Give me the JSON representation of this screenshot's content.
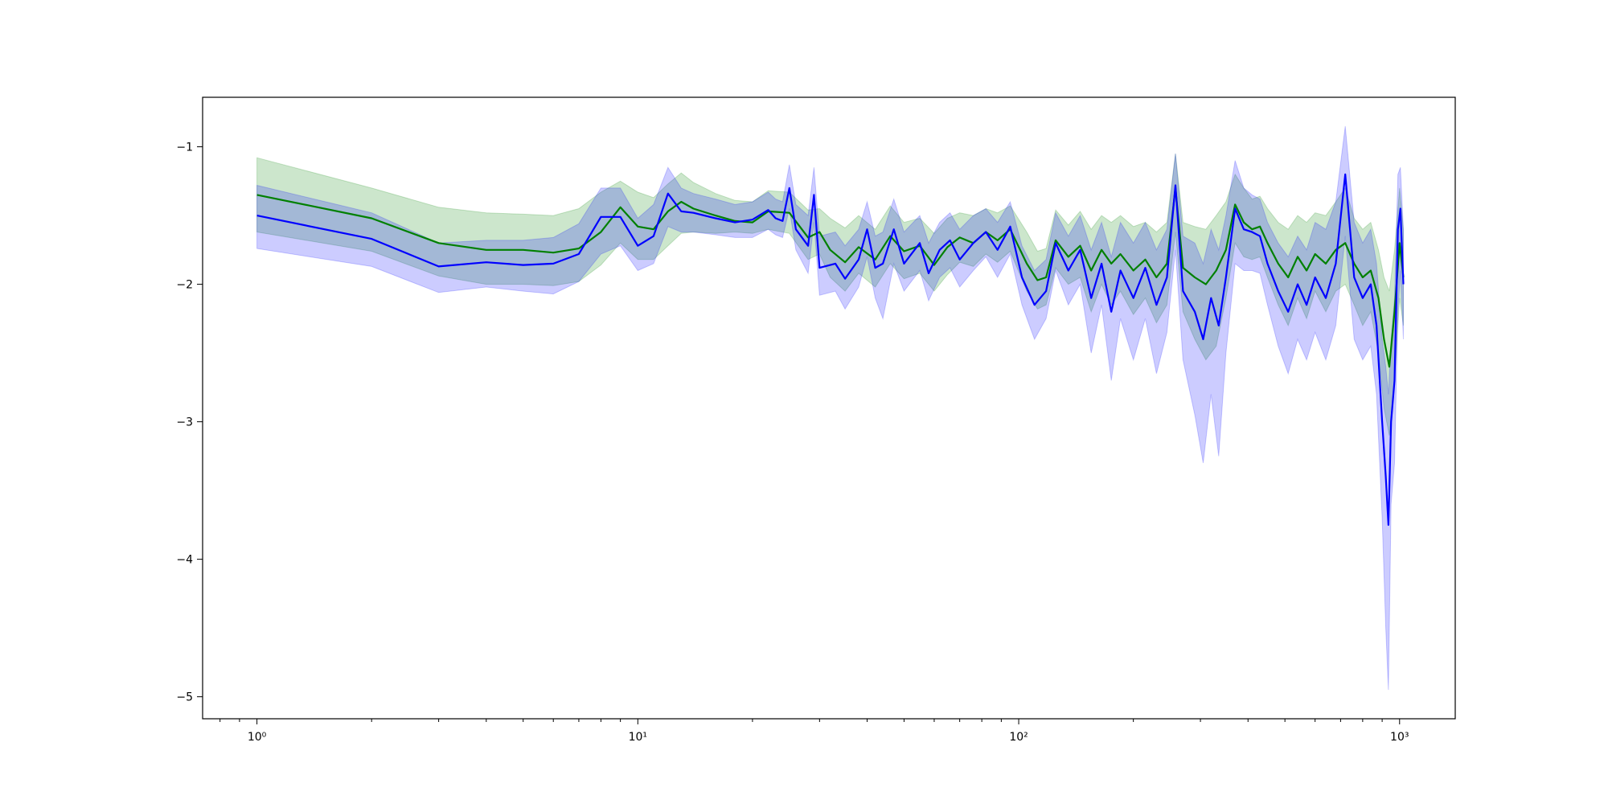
{
  "chart_data": {
    "type": "line",
    "title": "",
    "xlabel": "",
    "ylabel": "",
    "xscale": "log",
    "xlim": [
      0.72,
      1400
    ],
    "ylim": [
      -5.16,
      -0.64
    ],
    "grid": false,
    "legend": "none",
    "x_ticks": [
      {
        "value": 1,
        "label": "10⁰"
      },
      {
        "value": 10,
        "label": "10¹"
      },
      {
        "value": 100,
        "label": "10²"
      },
      {
        "value": 1000,
        "label": "10³"
      }
    ],
    "y_ticks": [
      {
        "value": -1,
        "label": "−1"
      },
      {
        "value": -2,
        "label": "−2"
      },
      {
        "value": -3,
        "label": "−3"
      },
      {
        "value": -4,
        "label": "−4"
      },
      {
        "value": -5,
        "label": "−5"
      }
    ],
    "series": [
      {
        "color": "#008000",
        "band_color": "#008000",
        "band_opacity": 0.2,
        "points": [
          [
            1,
            -1.35,
            -1.62,
            -1.08
          ],
          [
            2,
            -1.52,
            -1.76,
            -1.3
          ],
          [
            3,
            -1.7,
            -1.94,
            -1.44
          ],
          [
            4,
            -1.75,
            -2.0,
            -1.48
          ],
          [
            5,
            -1.75,
            -2.0,
            -1.49
          ],
          [
            6,
            -1.77,
            -2.01,
            -1.5
          ],
          [
            7,
            -1.74,
            -1.98,
            -1.45
          ],
          [
            8,
            -1.62,
            -1.86,
            -1.33
          ],
          [
            9,
            -1.44,
            -1.7,
            -1.25
          ],
          [
            10,
            -1.58,
            -1.82,
            -1.33
          ],
          [
            11,
            -1.6,
            -1.82,
            -1.37
          ],
          [
            12,
            -1.47,
            -1.72,
            -1.27
          ],
          [
            13,
            -1.4,
            -1.63,
            -1.19
          ],
          [
            14,
            -1.45,
            -1.62,
            -1.26
          ],
          [
            16,
            -1.5,
            -1.63,
            -1.34
          ],
          [
            18,
            -1.54,
            -1.62,
            -1.39
          ],
          [
            20,
            -1.55,
            -1.63,
            -1.4
          ],
          [
            22,
            -1.47,
            -1.6,
            -1.32
          ],
          [
            25,
            -1.48,
            -1.63,
            -1.33
          ],
          [
            28,
            -1.66,
            -1.82,
            -1.46
          ],
          [
            30,
            -1.62,
            -1.78,
            -1.45
          ],
          [
            32,
            -1.75,
            -1.95,
            -1.52
          ],
          [
            35,
            -1.84,
            -2.05,
            -1.59
          ],
          [
            38,
            -1.73,
            -1.92,
            -1.5
          ],
          [
            42,
            -1.82,
            -2.02,
            -1.6
          ],
          [
            46,
            -1.65,
            -1.85,
            -1.43
          ],
          [
            50,
            -1.76,
            -1.96,
            -1.55
          ],
          [
            55,
            -1.72,
            -1.92,
            -1.52
          ],
          [
            60,
            -1.86,
            -2.05,
            -1.63
          ],
          [
            65,
            -1.73,
            -1.93,
            -1.52
          ],
          [
            70,
            -1.66,
            -1.84,
            -1.48
          ],
          [
            76,
            -1.7,
            -1.87,
            -1.5
          ],
          [
            82,
            -1.62,
            -1.78,
            -1.45
          ],
          [
            88,
            -1.68,
            -1.84,
            -1.48
          ],
          [
            95,
            -1.6,
            -1.76,
            -1.43
          ],
          [
            105,
            -1.85,
            -2.05,
            -1.62
          ],
          [
            112,
            -1.97,
            -2.18,
            -1.76
          ],
          [
            118,
            -1.95,
            -2.15,
            -1.74
          ],
          [
            125,
            -1.68,
            -1.88,
            -1.46
          ],
          [
            135,
            -1.8,
            -2.0,
            -1.57
          ],
          [
            145,
            -1.72,
            -1.95,
            -1.47
          ],
          [
            155,
            -1.9,
            -2.2,
            -1.6
          ],
          [
            165,
            -1.75,
            -2.0,
            -1.5
          ],
          [
            175,
            -1.85,
            -2.15,
            -1.55
          ],
          [
            185,
            -1.78,
            -2.05,
            -1.5
          ],
          [
            200,
            -1.9,
            -2.22,
            -1.58
          ],
          [
            215,
            -1.82,
            -2.1,
            -1.55
          ],
          [
            230,
            -1.95,
            -2.28,
            -1.62
          ],
          [
            245,
            -1.85,
            -2.15,
            -1.55
          ],
          [
            258,
            -1.3,
            -1.62,
            -1.05
          ],
          [
            270,
            -1.88,
            -2.2,
            -1.55
          ],
          [
            290,
            -1.95,
            -2.4,
            -1.58
          ],
          [
            310,
            -2.0,
            -2.55,
            -1.6
          ],
          [
            330,
            -1.9,
            -2.45,
            -1.5
          ],
          [
            350,
            -1.75,
            -2.1,
            -1.4
          ],
          [
            370,
            -1.42,
            -1.7,
            -1.2
          ],
          [
            390,
            -1.55,
            -1.8,
            -1.3
          ],
          [
            410,
            -1.6,
            -1.82,
            -1.38
          ],
          [
            430,
            -1.58,
            -1.8,
            -1.36
          ],
          [
            450,
            -1.7,
            -1.95,
            -1.45
          ],
          [
            480,
            -1.85,
            -2.15,
            -1.55
          ],
          [
            510,
            -1.95,
            -2.3,
            -1.6
          ],
          [
            540,
            -1.8,
            -2.1,
            -1.5
          ],
          [
            570,
            -1.9,
            -2.25,
            -1.55
          ],
          [
            600,
            -1.78,
            -2.05,
            -1.48
          ],
          [
            640,
            -1.85,
            -2.2,
            -1.5
          ],
          [
            680,
            -1.75,
            -2.05,
            -1.4
          ],
          [
            720,
            -1.7,
            -2.0,
            -1.3
          ],
          [
            760,
            -1.85,
            -2.15,
            -1.52
          ],
          [
            800,
            -1.95,
            -2.3,
            -1.6
          ],
          [
            840,
            -1.9,
            -2.2,
            -1.55
          ],
          [
            880,
            -2.1,
            -2.5,
            -1.75
          ],
          [
            910,
            -2.4,
            -2.9,
            -1.95
          ],
          [
            940,
            -2.6,
            -3.1,
            -2.05
          ],
          [
            970,
            -2.2,
            -2.7,
            -1.75
          ],
          [
            1000,
            -1.7,
            -2.1,
            -1.3
          ],
          [
            1023,
            -1.95,
            -2.3,
            -1.6
          ]
        ]
      },
      {
        "color": "#0000ff",
        "band_color": "#0000ff",
        "band_opacity": 0.2,
        "points": [
          [
            1,
            -1.5,
            -1.74,
            -1.28
          ],
          [
            2,
            -1.67,
            -1.87,
            -1.48
          ],
          [
            3,
            -1.87,
            -2.06,
            -1.7
          ],
          [
            4,
            -1.84,
            -2.02,
            -1.68
          ],
          [
            5,
            -1.86,
            -2.05,
            -1.68
          ],
          [
            6,
            -1.85,
            -2.07,
            -1.66
          ],
          [
            7,
            -1.78,
            -1.98,
            -1.56
          ],
          [
            8,
            -1.51,
            -1.78,
            -1.3
          ],
          [
            9,
            -1.51,
            -1.72,
            -1.3
          ],
          [
            10,
            -1.72,
            -1.9,
            -1.52
          ],
          [
            11,
            -1.65,
            -1.85,
            -1.42
          ],
          [
            12,
            -1.34,
            -1.58,
            -1.15
          ],
          [
            13,
            -1.47,
            -1.62,
            -1.3
          ],
          [
            14,
            -1.48,
            -1.62,
            -1.34
          ],
          [
            16,
            -1.52,
            -1.64,
            -1.38
          ],
          [
            18,
            -1.55,
            -1.66,
            -1.42
          ],
          [
            20,
            -1.53,
            -1.66,
            -1.4
          ],
          [
            22,
            -1.46,
            -1.6,
            -1.33
          ],
          [
            23,
            -1.52,
            -1.64,
            -1.38
          ],
          [
            24,
            -1.54,
            -1.66,
            -1.4
          ],
          [
            25,
            -1.3,
            -1.45,
            -1.13
          ],
          [
            26,
            -1.6,
            -1.75,
            -1.42
          ],
          [
            28,
            -1.72,
            -1.92,
            -1.5
          ],
          [
            29,
            -1.35,
            -1.55,
            -1.15
          ],
          [
            30,
            -1.88,
            -2.08,
            -1.65
          ],
          [
            33,
            -1.85,
            -2.05,
            -1.62
          ],
          [
            35,
            -1.96,
            -2.18,
            -1.72
          ],
          [
            38,
            -1.82,
            -2.02,
            -1.6
          ],
          [
            40,
            -1.6,
            -1.8,
            -1.4
          ],
          [
            42,
            -1.88,
            -2.1,
            -1.65
          ],
          [
            44,
            -1.85,
            -2.25,
            -1.62
          ],
          [
            47,
            -1.6,
            -1.85,
            -1.38
          ],
          [
            50,
            -1.85,
            -2.05,
            -1.62
          ],
          [
            55,
            -1.7,
            -1.9,
            -1.5
          ],
          [
            58,
            -1.92,
            -2.12,
            -1.7
          ],
          [
            62,
            -1.75,
            -1.95,
            -1.55
          ],
          [
            66,
            -1.68,
            -1.88,
            -1.48
          ],
          [
            70,
            -1.82,
            -2.02,
            -1.6
          ],
          [
            76,
            -1.7,
            -1.9,
            -1.5
          ],
          [
            82,
            -1.62,
            -1.8,
            -1.45
          ],
          [
            88,
            -1.75,
            -1.95,
            -1.55
          ],
          [
            95,
            -1.58,
            -1.78,
            -1.4
          ],
          [
            102,
            -1.95,
            -2.15,
            -1.72
          ],
          [
            110,
            -2.15,
            -2.4,
            -1.9
          ],
          [
            118,
            -2.05,
            -2.25,
            -1.82
          ],
          [
            125,
            -1.7,
            -1.9,
            -1.48
          ],
          [
            135,
            -1.9,
            -2.15,
            -1.65
          ],
          [
            145,
            -1.75,
            -2.0,
            -1.5
          ],
          [
            155,
            -2.1,
            -2.5,
            -1.75
          ],
          [
            165,
            -1.85,
            -2.15,
            -1.55
          ],
          [
            175,
            -2.2,
            -2.7,
            -1.8
          ],
          [
            185,
            -1.9,
            -2.25,
            -1.55
          ],
          [
            200,
            -2.1,
            -2.55,
            -1.7
          ],
          [
            215,
            -1.88,
            -2.25,
            -1.55
          ],
          [
            230,
            -2.15,
            -2.65,
            -1.75
          ],
          [
            245,
            -1.95,
            -2.35,
            -1.6
          ],
          [
            258,
            -1.28,
            -1.75,
            -1.05
          ],
          [
            270,
            -2.05,
            -2.55,
            -1.65
          ],
          [
            290,
            -2.2,
            -2.95,
            -1.7
          ],
          [
            305,
            -2.4,
            -3.3,
            -1.85
          ],
          [
            320,
            -2.1,
            -2.8,
            -1.6
          ],
          [
            335,
            -2.3,
            -3.25,
            -1.75
          ],
          [
            350,
            -1.95,
            -2.5,
            -1.5
          ],
          [
            370,
            -1.45,
            -1.85,
            -1.1
          ],
          [
            390,
            -1.6,
            -1.9,
            -1.3
          ],
          [
            410,
            -1.62,
            -1.9,
            -1.35
          ],
          [
            430,
            -1.65,
            -1.92,
            -1.38
          ],
          [
            450,
            -1.85,
            -2.15,
            -1.55
          ],
          [
            480,
            -2.05,
            -2.45,
            -1.7
          ],
          [
            510,
            -2.2,
            -2.65,
            -1.8
          ],
          [
            540,
            -2.0,
            -2.4,
            -1.65
          ],
          [
            570,
            -2.15,
            -2.55,
            -1.75
          ],
          [
            600,
            -1.95,
            -2.35,
            -1.55
          ],
          [
            640,
            -2.1,
            -2.55,
            -1.6
          ],
          [
            680,
            -1.85,
            -2.3,
            -1.4
          ],
          [
            720,
            -1.2,
            -1.65,
            -0.85
          ],
          [
            760,
            -1.95,
            -2.4,
            -1.55
          ],
          [
            800,
            -2.1,
            -2.55,
            -1.7
          ],
          [
            840,
            -2.0,
            -2.45,
            -1.6
          ],
          [
            870,
            -2.3,
            -2.8,
            -1.85
          ],
          [
            900,
            -3.0,
            -3.7,
            -2.4
          ],
          [
            920,
            -3.4,
            -4.5,
            -2.6
          ],
          [
            935,
            -3.75,
            -4.95,
            -2.8
          ],
          [
            950,
            -3.0,
            -3.6,
            -2.4
          ],
          [
            970,
            -2.7,
            -3.3,
            -2.1
          ],
          [
            990,
            -1.6,
            -2.2,
            -1.2
          ],
          [
            1005,
            -1.45,
            -1.9,
            -1.15
          ],
          [
            1023,
            -2.0,
            -2.4,
            -1.6
          ]
        ]
      }
    ]
  }
}
